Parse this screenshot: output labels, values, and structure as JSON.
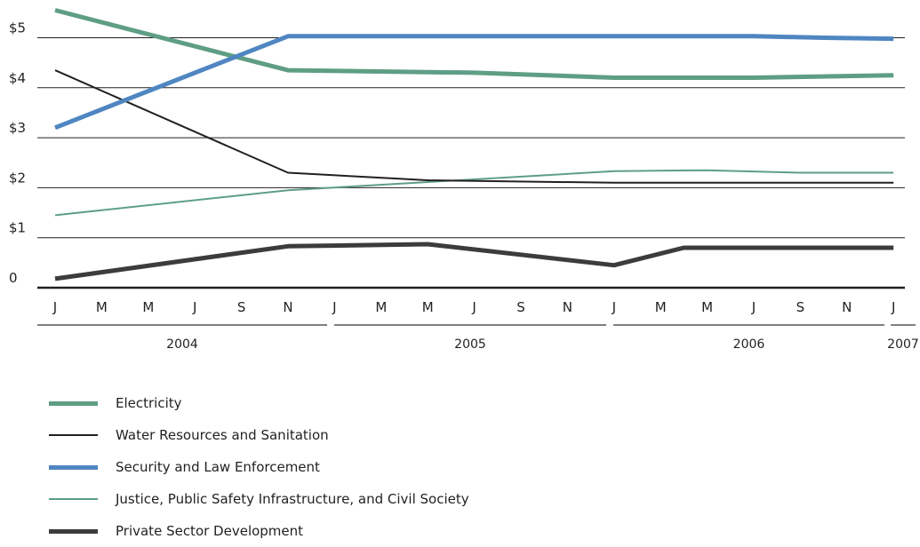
{
  "chart_data": {
    "type": "line",
    "title": "",
    "xlabel": "",
    "ylabel": "",
    "ylim": [
      0,
      5.5
    ],
    "y_ticks": [
      {
        "value": 0,
        "label": "0"
      },
      {
        "value": 1,
        "label": "$1"
      },
      {
        "value": 2,
        "label": "$2"
      },
      {
        "value": 3,
        "label": "$3"
      },
      {
        "value": 4,
        "label": "$4"
      },
      {
        "value": 5,
        "label": "$5"
      }
    ],
    "month_labels": [
      "J",
      "M",
      "M",
      "J",
      "S",
      "N",
      "J",
      "M",
      "M",
      "J",
      "S",
      "N",
      "J",
      "M",
      "M",
      "J",
      "S",
      "N",
      "J"
    ],
    "years": [
      {
        "label": "2004",
        "start": 0,
        "end": 11
      },
      {
        "label": "2005",
        "start": 12,
        "end": 23
      },
      {
        "label": "2006",
        "start": 24,
        "end": 35
      },
      {
        "label": "2007",
        "start": 36,
        "end": 36
      }
    ],
    "grid": true,
    "legend_position": "bottom-left",
    "series": [
      {
        "name": "Electricity",
        "color": "#5e9e84",
        "width": 5,
        "points": [
          [
            0,
            5.55
          ],
          [
            10,
            4.35
          ],
          [
            18,
            4.3
          ],
          [
            24,
            4.2
          ],
          [
            30,
            4.2
          ],
          [
            36,
            4.25
          ]
        ]
      },
      {
        "name": "Water Resources and Sanitation",
        "color": "#231f20",
        "width": 2,
        "points": [
          [
            0,
            4.35
          ],
          [
            10,
            2.3
          ],
          [
            16,
            2.15
          ],
          [
            24,
            2.1
          ],
          [
            36,
            2.1
          ]
        ]
      },
      {
        "name": "Security and Law Enforcement",
        "color": "#4f86c1",
        "width": 5,
        "points": [
          [
            0,
            3.2
          ],
          [
            10,
            5.03
          ],
          [
            24,
            5.03
          ],
          [
            30,
            5.03
          ],
          [
            33,
            5.0
          ],
          [
            36,
            4.98
          ]
        ]
      },
      {
        "name": "Justice, Public Safety Infrastructure, and Civil Society",
        "color": "#5e9e84",
        "width": 2,
        "points": [
          [
            0,
            1.45
          ],
          [
            10,
            1.95
          ],
          [
            24,
            2.33
          ],
          [
            28,
            2.35
          ],
          [
            32,
            2.3
          ],
          [
            36,
            2.3
          ]
        ]
      },
      {
        "name": "Private Sector Development",
        "color": "#3c3c3c",
        "width": 5,
        "points": [
          [
            0,
            0.18
          ],
          [
            10,
            0.83
          ],
          [
            16,
            0.87
          ],
          [
            24,
            0.45
          ],
          [
            27,
            0.8
          ],
          [
            32,
            0.8
          ],
          [
            36,
            0.8
          ]
        ]
      }
    ]
  }
}
